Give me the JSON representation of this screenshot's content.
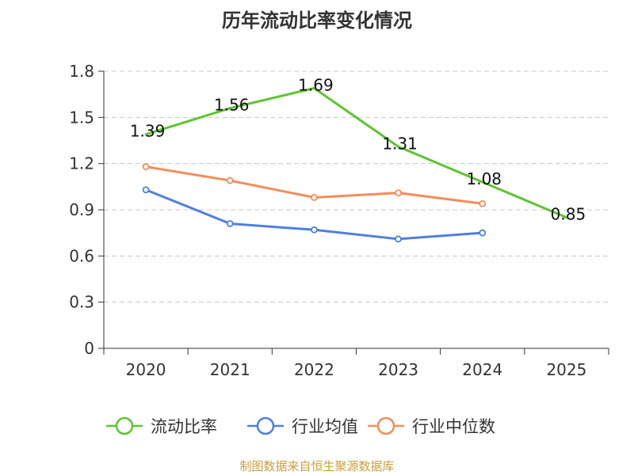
{
  "chart_data": {
    "type": "line",
    "title": "历年流动比率变化情况",
    "categories": [
      "2020",
      "2021",
      "2022",
      "2023",
      "2024",
      "2025"
    ],
    "ylim": [
      0,
      1.8
    ],
    "yticks": [
      "0",
      "0.3",
      "0.6",
      "0.9",
      "1.2",
      "1.5",
      "1.8"
    ],
    "grid": true,
    "legend_position": "bottom",
    "series": [
      {
        "name": "流动比率",
        "color": "#5ec42f",
        "values": [
          1.39,
          1.56,
          1.69,
          1.31,
          1.08,
          0.85
        ],
        "labels": [
          "1.39",
          "1.56",
          "1.69",
          "1.31",
          "1.08",
          "0.85"
        ],
        "markers": false
      },
      {
        "name": "行业均值",
        "color": "#4f7fdc",
        "values": [
          1.03,
          0.81,
          0.77,
          0.71,
          0.75,
          null
        ],
        "markers": true
      },
      {
        "name": "行业中位数",
        "color": "#f48d5a",
        "values": [
          1.18,
          1.09,
          0.98,
          1.01,
          0.94,
          null
        ],
        "markers": true
      }
    ]
  },
  "source_text": "制图数据来自恒生聚源数据库"
}
